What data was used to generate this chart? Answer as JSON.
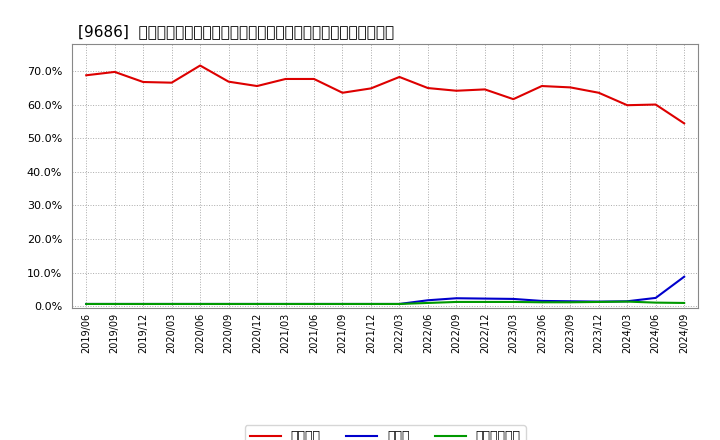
{
  "title": "[9686]  自己資本、のれん、繰延税金資産の総資産に対する比率の推移",
  "x_labels": [
    "2019/06",
    "2019/09",
    "2019/12",
    "2020/03",
    "2020/06",
    "2020/09",
    "2020/12",
    "2021/03",
    "2021/06",
    "2021/09",
    "2021/12",
    "2022/03",
    "2022/06",
    "2022/09",
    "2022/12",
    "2023/03",
    "2023/06",
    "2023/09",
    "2023/12",
    "2024/03",
    "2024/06",
    "2024/09"
  ],
  "equity_ratio": [
    0.687,
    0.697,
    0.667,
    0.665,
    0.716,
    0.668,
    0.655,
    0.676,
    0.676,
    0.635,
    0.648,
    0.682,
    0.649,
    0.641,
    0.645,
    0.616,
    0.655,
    0.651,
    0.635,
    0.598,
    0.6,
    0.544
  ],
  "goodwill_ratio": [
    0.007,
    0.007,
    0.007,
    0.007,
    0.007,
    0.007,
    0.007,
    0.007,
    0.007,
    0.007,
    0.007,
    0.007,
    0.018,
    0.024,
    0.023,
    0.022,
    0.016,
    0.015,
    0.014,
    0.015,
    0.025,
    0.088
  ],
  "deferred_tax_ratio": [
    0.007,
    0.007,
    0.007,
    0.007,
    0.007,
    0.007,
    0.007,
    0.007,
    0.007,
    0.007,
    0.007,
    0.007,
    0.01,
    0.013,
    0.013,
    0.013,
    0.012,
    0.012,
    0.013,
    0.014,
    0.011,
    0.01
  ],
  "equity_color": "#dd0000",
  "goodwill_color": "#0000cc",
  "deferred_tax_color": "#009900",
  "background_color": "#ffffff",
  "plot_bg_color": "#ffffff",
  "grid_color": "#aaaaaa",
  "ylim": [
    -0.005,
    0.78
  ],
  "yticks": [
    0.0,
    0.1,
    0.2,
    0.3,
    0.4,
    0.5,
    0.6,
    0.7
  ],
  "legend_labels": [
    "自己資本",
    "のれん",
    "繰延税金資産"
  ]
}
